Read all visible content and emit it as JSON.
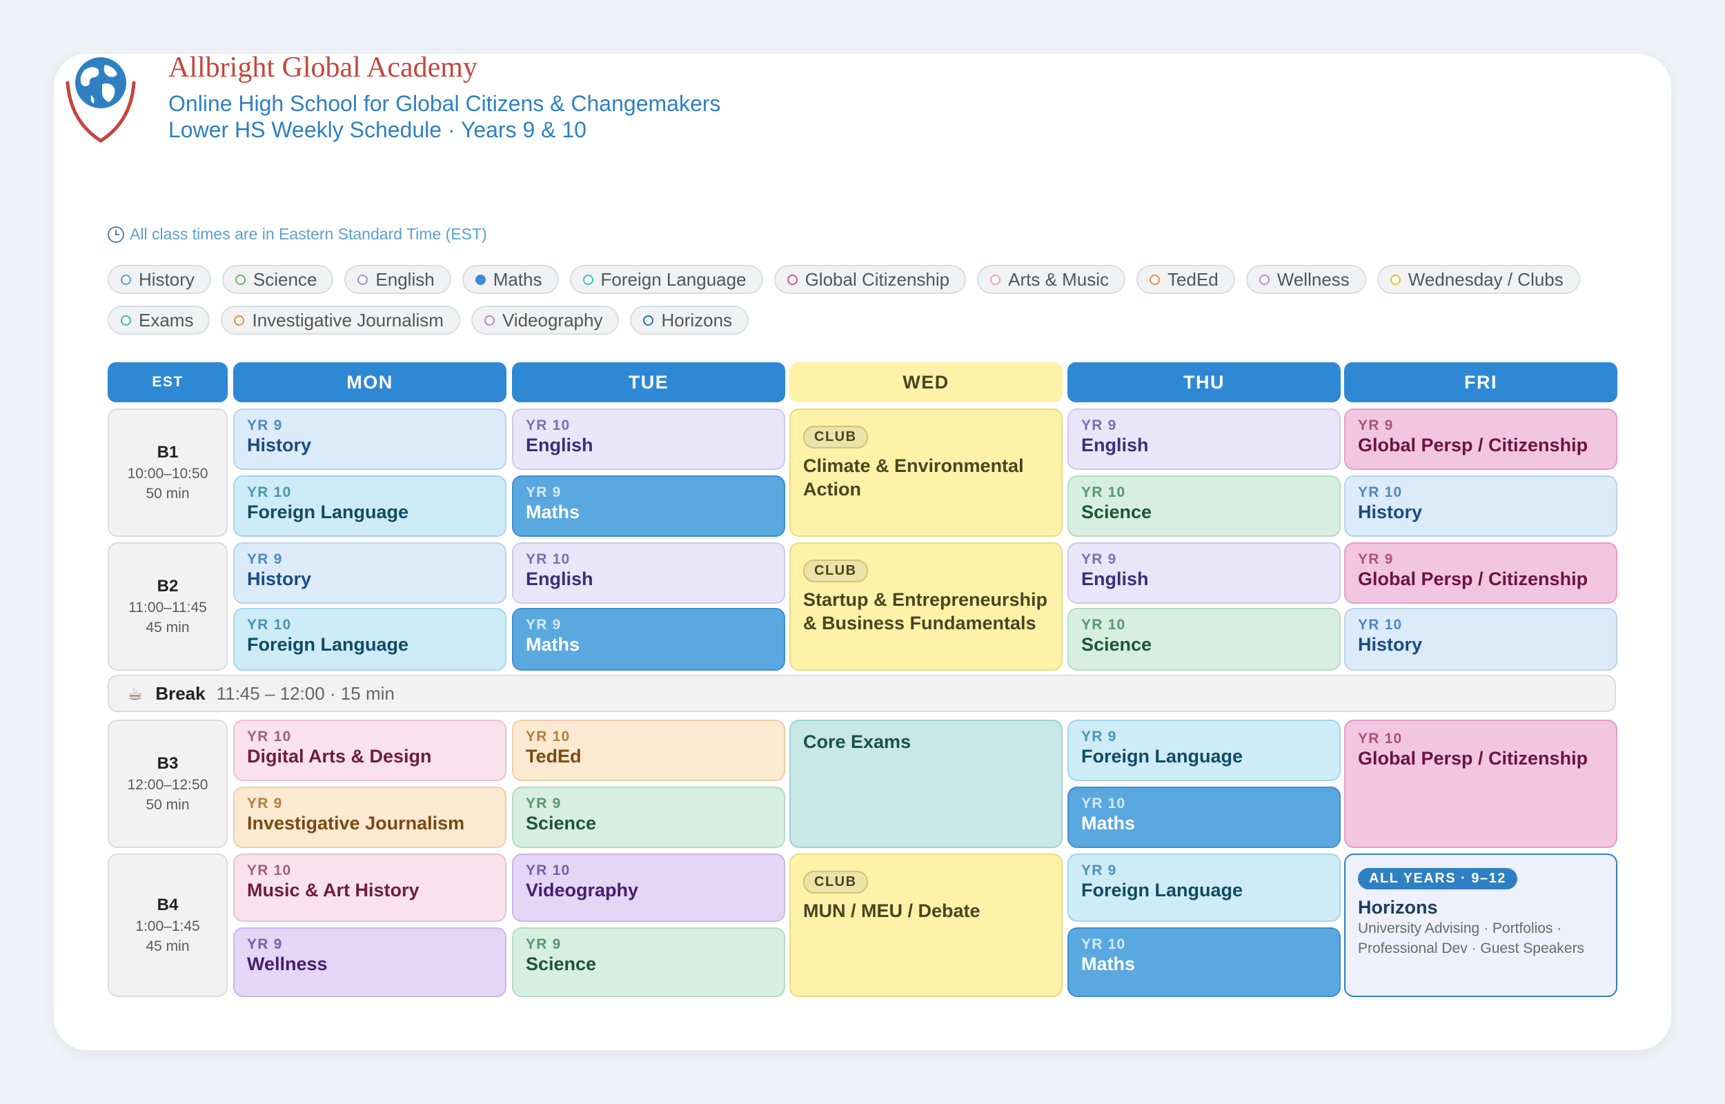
{
  "school": {
    "name": "Allbright Global Academy",
    "tagline": "Online High School for Global Citizens & Changemakers",
    "schedule_title": "Lower HS Weekly Schedule · Years 9 & 10"
  },
  "timezone_note": "All class times are in Eastern Standard Time (EST)",
  "legend": [
    {
      "label": "History",
      "color": "#5b9bd5"
    },
    {
      "label": "Science",
      "color": "#5cb85c"
    },
    {
      "label": "English",
      "color": "#9b8fd8"
    },
    {
      "label": "Maths",
      "color": "#3a8fd6",
      "filled": true
    },
    {
      "label": "Foreign Language",
      "color": "#3bbfbf"
    },
    {
      "label": "Global Citizenship",
      "color": "#d6508f"
    },
    {
      "label": "Arts & Music",
      "color": "#f0a0b8"
    },
    {
      "label": "TedEd",
      "color": "#f08a3a"
    },
    {
      "label": "Wellness",
      "color": "#b48ad8"
    },
    {
      "label": "Wednesday / Clubs",
      "color": "#e8c020"
    },
    {
      "label": "Exams",
      "color": "#3ab8b0"
    },
    {
      "label": "Investigative Journalism",
      "color": "#f08a3a"
    },
    {
      "label": "Videography",
      "color": "#c080d8"
    },
    {
      "label": "Horizons",
      "color": "#2a6fa8"
    }
  ],
  "columns": {
    "est": "EST",
    "mon": "MON",
    "tue": "TUE",
    "wed": "WED",
    "thu": "THU",
    "fri": "FRI"
  },
  "blocks": {
    "b1": {
      "label": "B1",
      "time": "10:00–10:50",
      "duration": "50 min"
    },
    "b2": {
      "label": "B2",
      "time": "11:00–11:45",
      "duration": "45 min"
    },
    "b3": {
      "label": "B3",
      "time": "12:00–12:50",
      "duration": "50 min"
    },
    "b4": {
      "label": "B4",
      "time": "1:00–1:45",
      "duration": "45 min"
    }
  },
  "break": {
    "label": "Break",
    "detail": "11:45 – 12:00 · 15 min"
  },
  "classes": {
    "mon_b1_a": {
      "year": "YR 9",
      "subject": "History"
    },
    "mon_b1_b": {
      "year": "YR 10",
      "subject": "Foreign Language"
    },
    "mon_b2_a": {
      "year": "YR 9",
      "subject": "History"
    },
    "mon_b2_b": {
      "year": "YR 10",
      "subject": "Foreign Language"
    },
    "mon_b3_a": {
      "year": "YR 10",
      "subject": "Digital Arts & Design"
    },
    "mon_b3_b": {
      "year": "YR 9",
      "subject": "Investigative Journalism"
    },
    "mon_b4_a": {
      "year": "YR 10",
      "subject": "Music & Art History"
    },
    "mon_b4_b": {
      "year": "YR 9",
      "subject": "Wellness"
    },
    "tue_b1_a": {
      "year": "YR 10",
      "subject": "English"
    },
    "tue_b1_b": {
      "year": "YR 9",
      "subject": "Maths"
    },
    "tue_b2_a": {
      "year": "YR 10",
      "subject": "English"
    },
    "tue_b2_b": {
      "year": "YR 9",
      "subject": "Maths"
    },
    "tue_b3_a": {
      "year": "YR 10",
      "subject": "TedEd"
    },
    "tue_b3_b": {
      "year": "YR 9",
      "subject": "Science"
    },
    "tue_b4_a": {
      "year": "YR 10",
      "subject": "Videography"
    },
    "tue_b4_b": {
      "year": "YR 9",
      "subject": "Science"
    },
    "thu_b1_a": {
      "year": "YR 9",
      "subject": "English"
    },
    "thu_b1_b": {
      "year": "YR 10",
      "subject": "Science"
    },
    "thu_b2_a": {
      "year": "YR 9",
      "subject": "English"
    },
    "thu_b2_b": {
      "year": "YR 10",
      "subject": "Science"
    },
    "thu_b3_a": {
      "year": "YR 9",
      "subject": "Foreign Language"
    },
    "thu_b3_b": {
      "year": "YR 10",
      "subject": "Maths"
    },
    "thu_b4_a": {
      "year": "YR 9",
      "subject": "Foreign Language"
    },
    "thu_b4_b": {
      "year": "YR 10",
      "subject": "Maths"
    },
    "fri_b1_a": {
      "year": "YR 9",
      "subject": "Global Persp / Citizenship"
    },
    "fri_b1_b": {
      "year": "YR 10",
      "subject": "History"
    },
    "fri_b2_a": {
      "year": "YR 9",
      "subject": "Global Persp / Citizenship"
    },
    "fri_b2_b": {
      "year": "YR 10",
      "subject": "History"
    },
    "fri_b3": {
      "year": "YR 10",
      "subject": "Global Persp / Citizenship"
    }
  },
  "wednesday": {
    "club1": {
      "badge": "CLUB",
      "title": "Climate & Environmental Action"
    },
    "club2": {
      "badge": "CLUB",
      "title": "Startup & Entrepreneurship & Business Fundamentals"
    },
    "exams": {
      "title": "Core Exams"
    },
    "club3": {
      "badge": "CLUB",
      "title": "MUN / MEU / Debate"
    }
  },
  "horizons": {
    "badge": "ALL YEARS · 9–12",
    "title": "Horizons",
    "description": "University Advising · Portfolios · Professional Dev · Guest Speakers"
  }
}
